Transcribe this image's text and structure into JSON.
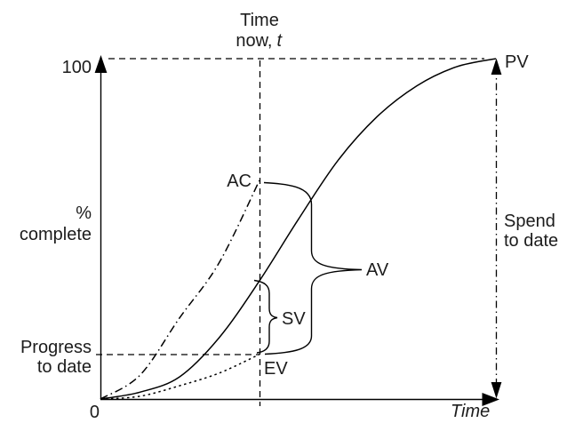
{
  "figure": {
    "top_annotation": {
      "line1": "Time",
      "line2_word": "now,",
      "line2_var": "t"
    },
    "y_axis": {
      "max_tick": "100",
      "origin_tick": "0",
      "title_line1": "%",
      "title_line2": "complete"
    },
    "x_axis": {
      "title": "Time"
    },
    "left_annotation": {
      "line1": "Progress",
      "line2": "to date"
    },
    "right_annotation": {
      "line1": "Spend",
      "line2": "to date"
    },
    "curve_labels": {
      "pv": "PV",
      "ac": "AC",
      "ev": "EV"
    },
    "variance_labels": {
      "sv": "SV",
      "av": "AV"
    },
    "colors": {
      "line": "#000000",
      "text": "#1c1c1c",
      "background": "#ffffff"
    }
  },
  "chart_data": {
    "type": "line",
    "title": "",
    "xlabel": "Time",
    "ylabel": "% complete",
    "ylim": [
      0,
      100
    ],
    "y_tick_labels": [
      "0",
      "100"
    ],
    "grid": false,
    "legend": "inline-labels",
    "annotations": [
      "Time now, t",
      "Progress to date",
      "Spend to date",
      "SV",
      "AV"
    ],
    "time_now_pct": 40.2,
    "values_at_time_now": {
      "AC": 64.2,
      "PV": 34.7,
      "EV": 13.1
    },
    "braces": [
      {
        "label": "SV",
        "from_pct": 34.7,
        "to_pct": 13.1
      },
      {
        "label": "AV",
        "from_pct": 64.2,
        "to_pct": 13.1
      }
    ],
    "series": [
      {
        "name": "PV",
        "line_style": "solid",
        "x": [
          0,
          10,
          20,
          30,
          40.2,
          50,
          60,
          70,
          80,
          90,
          100
        ],
        "y": [
          0,
          2,
          6.5,
          18,
          34.7,
          52.7,
          70,
          83,
          92,
          97.6,
          100
        ]
      },
      {
        "name": "AC",
        "line_style": "dashdot",
        "x": [
          0,
          10,
          20,
          30,
          40.2
        ],
        "y": [
          0,
          7,
          23.8,
          40,
          64.2
        ]
      },
      {
        "name": "EV",
        "line_style": "dotted",
        "x": [
          0,
          10,
          20,
          30,
          40.2
        ],
        "y": [
          0,
          0.8,
          3.9,
          7.6,
          13.1
        ]
      }
    ]
  }
}
